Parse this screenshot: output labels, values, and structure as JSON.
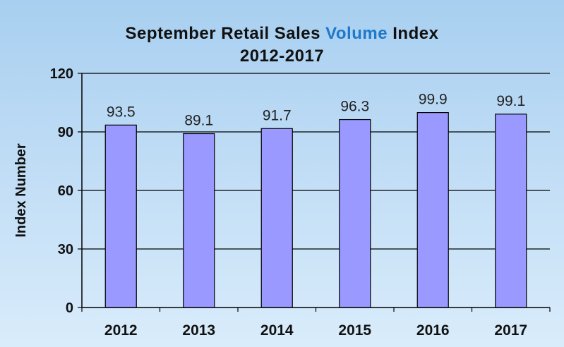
{
  "chart_data": {
    "type": "bar",
    "title_parts": [
      "September Retail Sales",
      "Volume",
      "Index"
    ],
    "subtitle": "2012-2017",
    "xlabel": "",
    "ylabel": "Index Number",
    "categories": [
      "2012",
      "2013",
      "2014",
      "2015",
      "2016",
      "2017"
    ],
    "values": [
      93.5,
      89.1,
      91.7,
      96.3,
      99.9,
      99.1
    ],
    "data_labels": [
      "93.5",
      "89.1",
      "91.7",
      "96.3",
      "99.9",
      "99.1"
    ],
    "ylim": [
      0,
      120
    ],
    "yticks": [
      0,
      30,
      60,
      90,
      120
    ],
    "ytick_labels": [
      "0",
      "30",
      "60",
      "90",
      "120"
    ],
    "grid": true,
    "legend": "none",
    "colors": {
      "bar_fill": "#9999ff",
      "bar_stroke": "#000000",
      "title_highlight": "#1f78c8",
      "grid": "#000000"
    }
  }
}
